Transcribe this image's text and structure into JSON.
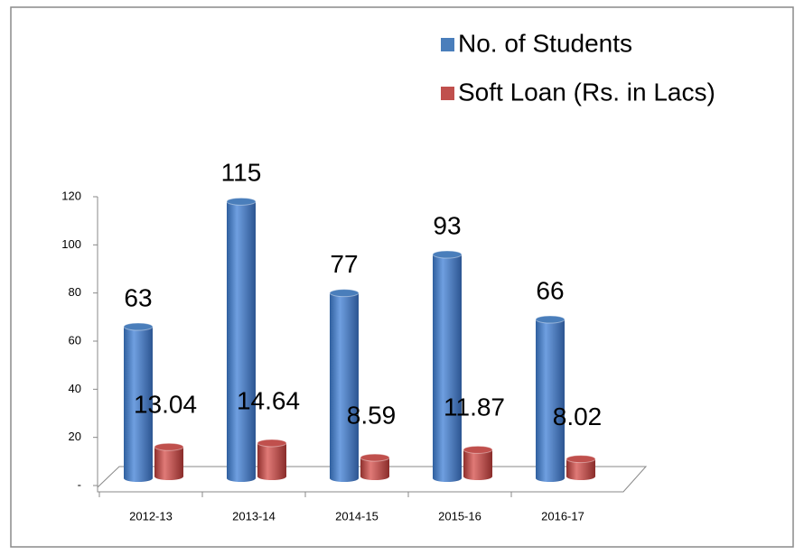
{
  "chart_data": {
    "type": "bar",
    "categories": [
      "2012-13",
      "2013-14",
      "2014-15",
      "2015-16",
      "2016-17"
    ],
    "series": [
      {
        "name": "No. of Students",
        "color": "#4a7ebb",
        "values": [
          63,
          115,
          77,
          93,
          66
        ]
      },
      {
        "name": "Soft Loan (Rs. in Lacs)",
        "color": "#c0504d",
        "values": [
          13.04,
          14.64,
          8.59,
          11.87,
          8.02
        ]
      }
    ],
    "ylim": [
      0,
      120
    ],
    "yticks": [
      {
        "value": 0,
        "label": "-"
      },
      20,
      40,
      60,
      80,
      100,
      120
    ],
    "legend": "top-right"
  }
}
